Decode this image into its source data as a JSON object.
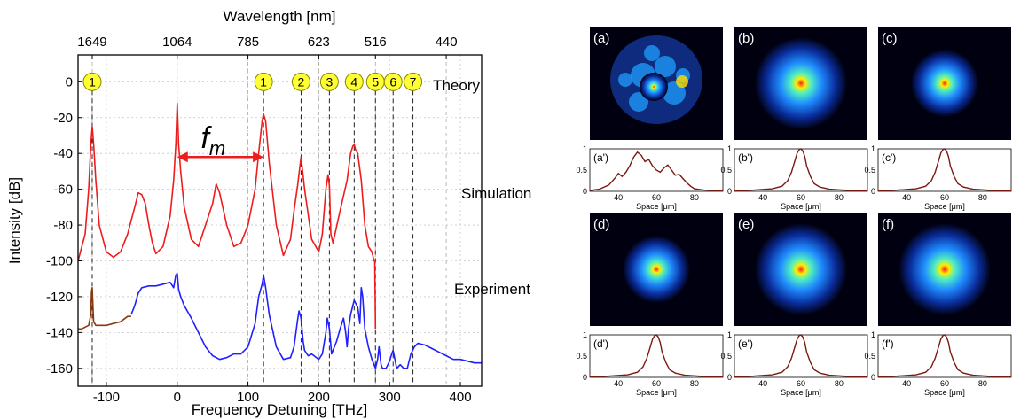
{
  "chart_data": [
    {
      "type": "line",
      "xlabel": "Frequency Detuning [THz]",
      "ylabel": "Intensity [dB]",
      "top_axis_label": "Wavelength [nm]",
      "xlim": [
        -140,
        430
      ],
      "ylim": [
        -170,
        15
      ],
      "x_ticks": [
        -100,
        0,
        100,
        200,
        300,
        400
      ],
      "y_ticks": [
        0,
        -20,
        -40,
        -60,
        -80,
        -100,
        -120,
        -140,
        -160
      ],
      "top_ticks": [
        {
          "x": -120,
          "label": "1649"
        },
        {
          "x": 0,
          "label": "1064"
        },
        {
          "x": 100,
          "label": "785"
        },
        {
          "x": 200,
          "label": "623"
        },
        {
          "x": 280,
          "label": "516"
        },
        {
          "x": 380,
          "label": "440"
        }
      ],
      "grid": true,
      "annotations": {
        "theory": "Theory",
        "simulation": "Simulation",
        "experiment": "Experiment",
        "fm": "f",
        "fm_sub": "m",
        "fm_arrow_x": [
          0,
          122
        ]
      },
      "theory_markers": [
        {
          "x": -120,
          "label": "1"
        },
        {
          "x": 122,
          "label": "1"
        },
        {
          "x": 175,
          "label": "2"
        },
        {
          "x": 215,
          "label": "3"
        },
        {
          "x": 250,
          "label": "4"
        },
        {
          "x": 280,
          "label": "5"
        },
        {
          "x": 305,
          "label": "6"
        },
        {
          "x": 333,
          "label": "7"
        }
      ],
      "series": [
        {
          "color": "#ee1c1c",
          "x": [
            -140,
            -130,
            -125,
            -122,
            -120,
            -118,
            -115,
            -110,
            -100,
            -90,
            -80,
            -70,
            -60,
            -55,
            -50,
            -45,
            -40,
            -35,
            -30,
            -20,
            -10,
            -5,
            -2,
            0,
            2,
            5,
            10,
            20,
            30,
            40,
            50,
            55,
            60,
            70,
            80,
            90,
            100,
            110,
            115,
            120,
            122,
            125,
            130,
            140,
            150,
            160,
            165,
            170,
            175,
            180,
            190,
            200,
            205,
            210,
            213,
            215,
            217,
            220,
            230,
            240,
            245,
            248,
            250,
            252,
            255,
            260,
            265,
            270,
            275,
            278,
            280
          ],
          "y": [
            -100,
            -85,
            -60,
            -35,
            -25,
            -35,
            -55,
            -80,
            -95,
            -98,
            -95,
            -85,
            -70,
            -62,
            -63,
            -68,
            -80,
            -90,
            -96,
            -92,
            -75,
            -55,
            -35,
            -12,
            -35,
            -50,
            -70,
            -88,
            -92,
            -80,
            -68,
            -57,
            -62,
            -80,
            -92,
            -90,
            -80,
            -60,
            -40,
            -22,
            -18,
            -22,
            -45,
            -80,
            -97,
            -88,
            -72,
            -58,
            -42,
            -60,
            -88,
            -95,
            -85,
            -60,
            -52,
            -58,
            -85,
            -90,
            -72,
            -55,
            -40,
            -36,
            -35,
            -38,
            -40,
            -55,
            -80,
            -92,
            -95,
            -100,
            -100
          ]
        },
        {
          "color": "#8b3a10",
          "x": [
            -140,
            -135,
            -130,
            -125,
            -122,
            -121,
            -120,
            -119,
            -118,
            -115,
            -110,
            -100,
            -90,
            -80,
            -70,
            -65
          ],
          "y": [
            -138,
            -138,
            -137,
            -136,
            -130,
            -117,
            -115,
            -125,
            -134,
            -136,
            -136,
            -136,
            -135,
            -134,
            -131,
            -131
          ]
        },
        {
          "color": "#1f1fff",
          "x": [
            -65,
            -60,
            -55,
            -50,
            -40,
            -30,
            -20,
            -10,
            -5,
            -2,
            0,
            2,
            5,
            10,
            20,
            30,
            40,
            50,
            60,
            70,
            80,
            90,
            100,
            110,
            115,
            120,
            122,
            125,
            130,
            140,
            150,
            160,
            165,
            170,
            172,
            175,
            178,
            180,
            185,
            190,
            200,
            205,
            210,
            212,
            215,
            218,
            220,
            225,
            230,
            235,
            238,
            240,
            242,
            245,
            250,
            255,
            258,
            260,
            262,
            265,
            270,
            275,
            278,
            280,
            283,
            285,
            288,
            290,
            295,
            300,
            303,
            305,
            308,
            310,
            315,
            320,
            325,
            330,
            335,
            340,
            350,
            360,
            370,
            380,
            390,
            400,
            410,
            420,
            430
          ],
          "y": [
            -130,
            -125,
            -118,
            -115,
            -114,
            -114,
            -113,
            -112,
            -115,
            -108,
            -107,
            -116,
            -120,
            -125,
            -132,
            -140,
            -148,
            -153,
            -155,
            -154,
            -152,
            -152,
            -148,
            -135,
            -120,
            -113,
            -108,
            -115,
            -130,
            -148,
            -155,
            -154,
            -148,
            -133,
            -128,
            -132,
            -145,
            -150,
            -153,
            -152,
            -155,
            -152,
            -140,
            -132,
            -138,
            -152,
            -150,
            -145,
            -138,
            -132,
            -140,
            -148,
            -138,
            -130,
            -122,
            -126,
            -135,
            -115,
            -120,
            -138,
            -148,
            -155,
            -158,
            -160,
            -155,
            -148,
            -158,
            -160,
            -160,
            -156,
            -152,
            -150,
            -156,
            -160,
            -158,
            -160,
            -160,
            -152,
            -148,
            -146,
            -147,
            -149,
            -151,
            -153,
            -155,
            -155,
            -156,
            -157,
            -157
          ]
        },
        {
          "color": "#ee1c1c",
          "x": [
            279,
            279.5,
            280
          ],
          "y": [
            -100,
            -118,
            -138
          ]
        }
      ]
    },
    {
      "type": "line",
      "panels": [
        {
          "img_label": "(a)",
          "plot_label": "(a')",
          "profile": "multi"
        },
        {
          "img_label": "(b)",
          "plot_label": "(b')",
          "profile": "single"
        },
        {
          "img_label": "(c)",
          "plot_label": "(c')",
          "profile": "single"
        },
        {
          "img_label": "(d)",
          "plot_label": "(d')",
          "profile": "single"
        },
        {
          "img_label": "(e)",
          "plot_label": "(e')",
          "profile": "single"
        },
        {
          "img_label": "(f)",
          "plot_label": "(f')",
          "profile": "single"
        }
      ],
      "xlabel": "Space [μm]",
      "x_ticks": [
        40,
        60,
        80
      ],
      "y_ticks": [
        "1",
        "0.5",
        "0"
      ],
      "xlim": [
        25,
        95
      ],
      "ylim": [
        0,
        1
      ],
      "color": "#7a1a10",
      "profile_multi": {
        "x": [
          25,
          30,
          35,
          38,
          40,
          42,
          44,
          46,
          48,
          50,
          52,
          54,
          56,
          58,
          60,
          62,
          64,
          66,
          68,
          70,
          72,
          74,
          76,
          78,
          80,
          85,
          90,
          95
        ],
        "y": [
          0.02,
          0.05,
          0.15,
          0.3,
          0.42,
          0.35,
          0.45,
          0.6,
          0.8,
          0.92,
          0.85,
          0.7,
          0.75,
          0.6,
          0.5,
          0.45,
          0.55,
          0.62,
          0.5,
          0.38,
          0.4,
          0.3,
          0.2,
          0.12,
          0.06,
          0.03,
          0.02,
          0.01
        ]
      },
      "profile_single": {
        "x": [
          25,
          35,
          45,
          50,
          53,
          55,
          57,
          58,
          59,
          60,
          61,
          62,
          63,
          65,
          67,
          70,
          75,
          85,
          95
        ],
        "y": [
          0.01,
          0.03,
          0.06,
          0.12,
          0.25,
          0.45,
          0.75,
          0.9,
          0.98,
          1.0,
          0.95,
          0.82,
          0.6,
          0.35,
          0.18,
          0.1,
          0.05,
          0.02,
          0.01
        ]
      }
    }
  ]
}
